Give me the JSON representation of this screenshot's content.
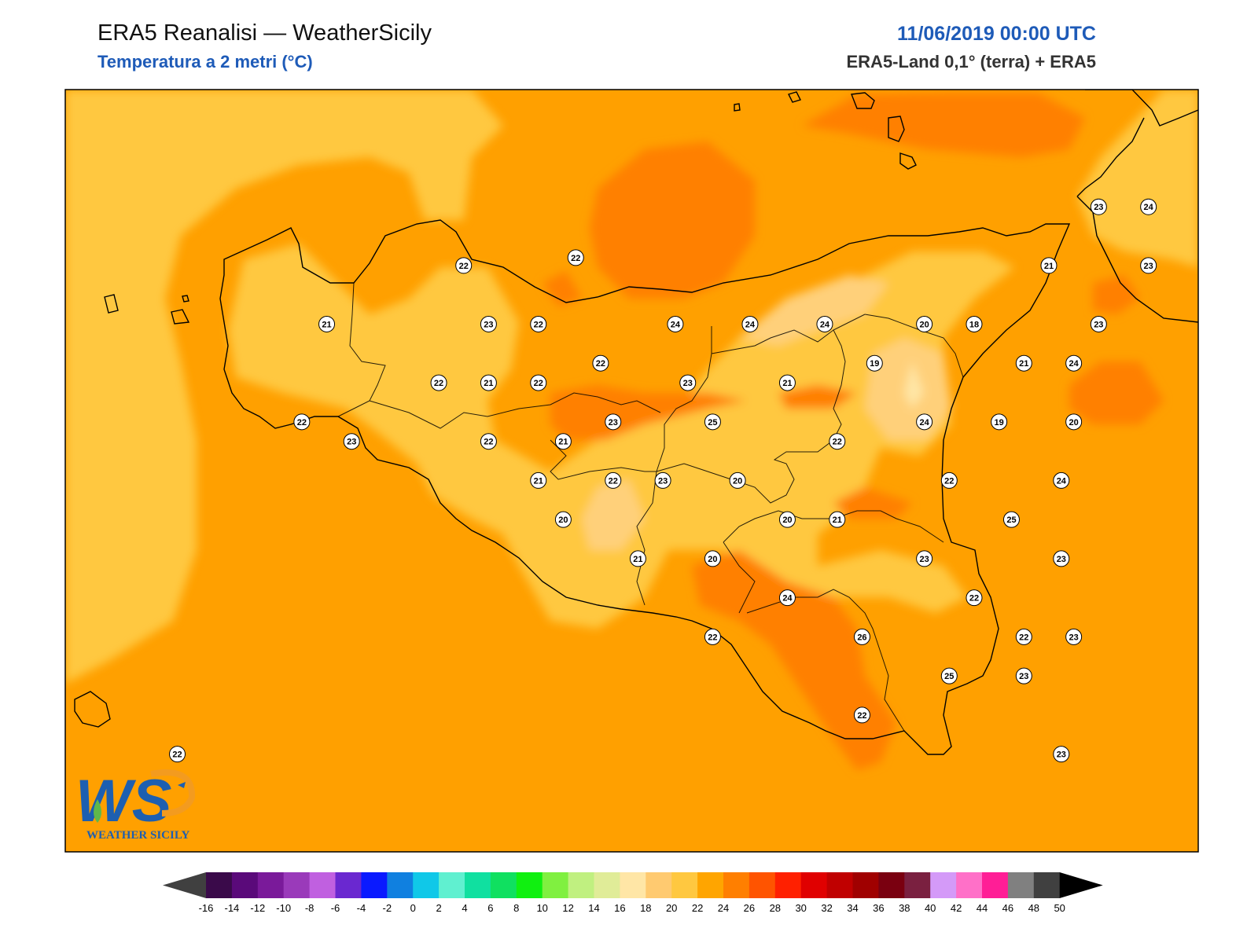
{
  "header": {
    "title": "ERA5 Reanalisi — WeatherSicily",
    "subtitle": "Temperatura a 2 metri (°C)",
    "datetime": "11/06/2019 00:00 UTC",
    "source": "ERA5-Land 0,1° (terra) + ERA5"
  },
  "logo": {
    "mark": "WS",
    "text": "WEATHER SICILY",
    "icon": "weathersicily-logo-icon",
    "colors": {
      "blue": "#1d5fb0",
      "orange": "#f39b1f",
      "green": "#5fb84a"
    }
  },
  "colorbar": {
    "labels": [
      "-16",
      "-14",
      "-12",
      "-10",
      "-8",
      "-6",
      "-4",
      "-2",
      "0",
      "2",
      "4",
      "6",
      "8",
      "10",
      "12",
      "14",
      "16",
      "18",
      "20",
      "22",
      "24",
      "26",
      "28",
      "30",
      "32",
      "34",
      "36",
      "38",
      "40",
      "42",
      "44",
      "46",
      "48",
      "50"
    ],
    "colors": [
      "#3a0a4a",
      "#5a0a7a",
      "#7a1a9a",
      "#9a3aba",
      "#c060e0",
      "#6a28d0",
      "#0a1aff",
      "#1080e0",
      "#10c8e8",
      "#60f0d0",
      "#10e0a0",
      "#10e060",
      "#10f010",
      "#80f040",
      "#c0f080",
      "#e0ec98",
      "#ffe6a6",
      "#ffca70",
      "#ffc840",
      "#ffa500",
      "#ff7f00",
      "#ff5400",
      "#ff2000",
      "#e00000",
      "#c00000",
      "#a00000",
      "#7a0010",
      "#7a2040",
      "#d49af8",
      "#ff70c8",
      "#ff1e96",
      "#808080",
      "#404040"
    ],
    "under_color": "#404040",
    "over_color": "#000000"
  },
  "map": {
    "variable": "2m temperature",
    "unit": "°C",
    "background_color": "#ffa000",
    "stations": [
      {
        "value": "22",
        "lon": 13.1,
        "lat": 38.1
      },
      {
        "value": "21",
        "lon": 12.55,
        "lat": 37.95
      },
      {
        "value": "23",
        "lon": 13.2,
        "lat": 37.95
      },
      {
        "value": "22",
        "lon": 13.4,
        "lat": 37.95
      },
      {
        "value": "22",
        "lon": 13.55,
        "lat": 38.12
      },
      {
        "value": "22",
        "lon": 13.65,
        "lat": 37.85
      },
      {
        "value": "24",
        "lon": 13.95,
        "lat": 37.95
      },
      {
        "value": "24",
        "lon": 14.25,
        "lat": 37.95
      },
      {
        "value": "24",
        "lon": 14.55,
        "lat": 37.95
      },
      {
        "value": "20",
        "lon": 14.95,
        "lat": 37.95
      },
      {
        "value": "18",
        "lon": 15.15,
        "lat": 37.95
      },
      {
        "value": "21",
        "lon": 15.45,
        "lat": 38.1
      },
      {
        "value": "23",
        "lon": 15.65,
        "lat": 38.25
      },
      {
        "value": "24",
        "lon": 15.85,
        "lat": 38.25
      },
      {
        "value": "23",
        "lon": 15.85,
        "lat": 38.1
      },
      {
        "value": "23",
        "lon": 15.65,
        "lat": 37.95
      },
      {
        "value": "22",
        "lon": 12.45,
        "lat": 37.7
      },
      {
        "value": "22",
        "lon": 13.0,
        "lat": 37.8
      },
      {
        "value": "21",
        "lon": 13.2,
        "lat": 37.8
      },
      {
        "value": "22",
        "lon": 13.4,
        "lat": 37.8
      },
      {
        "value": "23",
        "lon": 14.0,
        "lat": 37.8
      },
      {
        "value": "21",
        "lon": 14.4,
        "lat": 37.8
      },
      {
        "value": "19",
        "lon": 14.75,
        "lat": 37.85
      },
      {
        "value": "21",
        "lon": 15.35,
        "lat": 37.85
      },
      {
        "value": "24",
        "lon": 15.55,
        "lat": 37.85
      },
      {
        "value": "23",
        "lon": 12.65,
        "lat": 37.65
      },
      {
        "value": "22",
        "lon": 13.2,
        "lat": 37.65
      },
      {
        "value": "23",
        "lon": 13.7,
        "lat": 37.7
      },
      {
        "value": "25",
        "lon": 14.1,
        "lat": 37.7
      },
      {
        "value": "24",
        "lon": 14.95,
        "lat": 37.7
      },
      {
        "value": "19",
        "lon": 15.25,
        "lat": 37.7
      },
      {
        "value": "20",
        "lon": 15.55,
        "lat": 37.7
      },
      {
        "value": "21",
        "lon": 13.5,
        "lat": 37.65
      },
      {
        "value": "22",
        "lon": 14.6,
        "lat": 37.65
      },
      {
        "value": "21",
        "lon": 13.4,
        "lat": 37.55
      },
      {
        "value": "22",
        "lon": 13.7,
        "lat": 37.55
      },
      {
        "value": "23",
        "lon": 13.9,
        "lat": 37.55
      },
      {
        "value": "20",
        "lon": 14.2,
        "lat": 37.55
      },
      {
        "value": "22",
        "lon": 15.05,
        "lat": 37.55
      },
      {
        "value": "24",
        "lon": 15.5,
        "lat": 37.55
      },
      {
        "value": "20",
        "lon": 13.5,
        "lat": 37.45
      },
      {
        "value": "20",
        "lon": 14.4,
        "lat": 37.45
      },
      {
        "value": "21",
        "lon": 14.6,
        "lat": 37.45
      },
      {
        "value": "25",
        "lon": 15.3,
        "lat": 37.45
      },
      {
        "value": "21",
        "lon": 13.8,
        "lat": 37.35
      },
      {
        "value": "20",
        "lon": 14.1,
        "lat": 37.35
      },
      {
        "value": "23",
        "lon": 14.95,
        "lat": 37.35
      },
      {
        "value": "23",
        "lon": 15.5,
        "lat": 37.35
      },
      {
        "value": "24",
        "lon": 14.4,
        "lat": 37.25
      },
      {
        "value": "22",
        "lon": 15.15,
        "lat": 37.25
      },
      {
        "value": "22",
        "lon": 14.1,
        "lat": 37.15
      },
      {
        "value": "26",
        "lon": 14.7,
        "lat": 37.15
      },
      {
        "value": "22",
        "lon": 15.35,
        "lat": 37.15
      },
      {
        "value": "23",
        "lon": 15.55,
        "lat": 37.15
      },
      {
        "value": "25",
        "lon": 15.05,
        "lat": 37.05
      },
      {
        "value": "23",
        "lon": 15.35,
        "lat": 37.05
      },
      {
        "value": "22",
        "lon": 14.7,
        "lat": 36.95
      },
      {
        "value": "23",
        "lon": 15.5,
        "lat": 36.85
      },
      {
        "value": "22",
        "lon": 11.95,
        "lat": 36.85
      }
    ]
  }
}
